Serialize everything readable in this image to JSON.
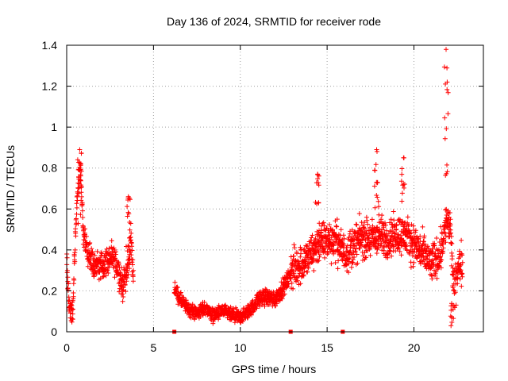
{
  "chart_data": {
    "type": "scatter",
    "title": "Day 136 of 2024, SRMTID for receiver rode",
    "xlabel": "GPS time / hours",
    "ylabel": "SRMTID / TECUs",
    "xlim": [
      0,
      24
    ],
    "ylim": [
      0,
      1.4
    ],
    "xticks": [
      0,
      5,
      10,
      15,
      20
    ],
    "xtick_labels": [
      "0",
      "5",
      "10",
      "15",
      "20"
    ],
    "yticks": [
      0,
      0.2,
      0.4,
      0.6,
      0.8,
      1.0,
      1.2,
      1.4
    ],
    "ytick_labels": [
      "0",
      "0.2",
      "0.4",
      "0.6",
      "0.8",
      "1",
      "1.2",
      "1.4"
    ],
    "grid": true,
    "marker": "plus",
    "color": "#ff0000",
    "series": [
      {
        "name": "SRMTID",
        "segments": [
          {
            "x_start": 0.0,
            "x_end": 3.85,
            "trend": [
              [
                0.0,
                0.35
              ],
              [
                0.15,
                0.12
              ],
              [
                0.35,
                0.1
              ],
              [
                0.5,
                0.45
              ],
              [
                0.65,
                0.72
              ],
              [
                0.8,
                0.78
              ],
              [
                0.95,
                0.5
              ],
              [
                1.2,
                0.38
              ],
              [
                1.6,
                0.33
              ],
              [
                2.0,
                0.32
              ],
              [
                2.5,
                0.36
              ],
              [
                2.9,
                0.33
              ],
              [
                3.2,
                0.22
              ],
              [
                3.5,
                0.3
              ],
              [
                3.7,
                0.45
              ],
              [
                3.85,
                0.25
              ]
            ],
            "spread": 0.1
          },
          {
            "x_start": 6.2,
            "x_end": 11.0,
            "trend": [
              [
                6.2,
                0.22
              ],
              [
                6.5,
                0.16
              ],
              [
                7.0,
                0.11
              ],
              [
                7.5,
                0.09
              ],
              [
                8.0,
                0.12
              ],
              [
                8.4,
                0.08
              ],
              [
                9.0,
                0.1
              ],
              [
                9.5,
                0.08
              ],
              [
                10.0,
                0.07
              ],
              [
                10.5,
                0.1
              ],
              [
                11.0,
                0.15
              ]
            ],
            "spread": 0.05
          },
          {
            "x_start": 11.0,
            "x_end": 12.9,
            "trend": [
              [
                11.0,
                0.16
              ],
              [
                11.5,
                0.17
              ],
              [
                12.0,
                0.16
              ],
              [
                12.5,
                0.22
              ],
              [
                12.9,
                0.28
              ]
            ],
            "spread": 0.06
          },
          {
            "x_start": 12.9,
            "x_end": 22.8,
            "trend": [
              [
                12.9,
                0.3
              ],
              [
                13.5,
                0.33
              ],
              [
                14.0,
                0.37
              ],
              [
                14.5,
                0.43
              ],
              [
                15.0,
                0.45
              ],
              [
                15.5,
                0.45
              ],
              [
                16.0,
                0.38
              ],
              [
                16.5,
                0.42
              ],
              [
                17.0,
                0.46
              ],
              [
                17.5,
                0.45
              ],
              [
                18.0,
                0.47
              ],
              [
                18.5,
                0.45
              ],
              [
                19.0,
                0.48
              ],
              [
                19.5,
                0.47
              ],
              [
                20.0,
                0.43
              ],
              [
                20.5,
                0.38
              ],
              [
                21.0,
                0.33
              ],
              [
                21.5,
                0.38
              ],
              [
                21.9,
                0.55
              ],
              [
                22.1,
                0.5
              ],
              [
                22.3,
                0.18
              ],
              [
                22.5,
                0.3
              ],
              [
                22.8,
                0.35
              ]
            ],
            "spread": 0.14
          }
        ],
        "spikes": [
          {
            "x": 0.75,
            "max": 0.89
          },
          {
            "x": 3.55,
            "max": 0.66
          },
          {
            "x": 14.45,
            "max": 0.77
          },
          {
            "x": 17.85,
            "max": 0.89
          },
          {
            "x": 19.4,
            "max": 0.85
          },
          {
            "x": 21.85,
            "max": 1.38
          },
          {
            "x": 22.2,
            "min": 0.02
          }
        ],
        "zero_markers_x": [
          6.2,
          12.9,
          15.9
        ]
      }
    ]
  }
}
